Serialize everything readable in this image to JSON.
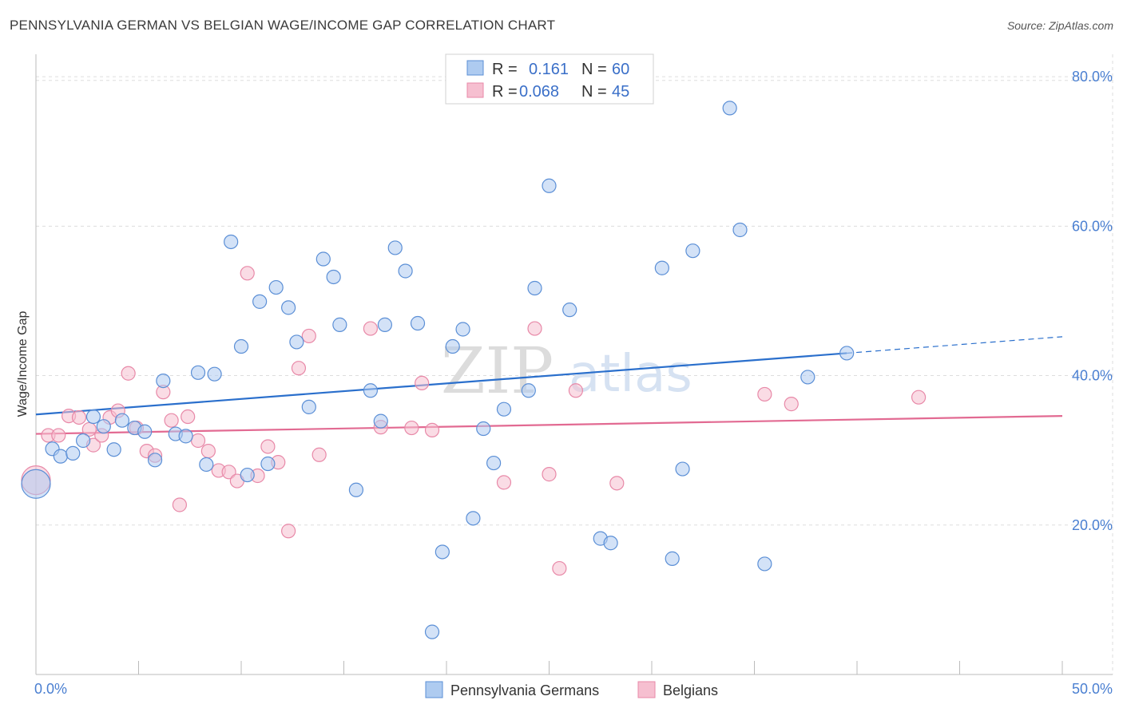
{
  "title": "PENNSYLVANIA GERMAN VS BELGIAN WAGE/INCOME GAP CORRELATION CHART",
  "source": "Source: ZipAtlas.com",
  "watermark": {
    "zip": "ZIP",
    "atlas": "atlas"
  },
  "colors": {
    "blue_fill": "#aecbf0",
    "blue_stroke": "#5b8fd6",
    "blue_line": "#2a6fcc",
    "pink_fill": "#f6bfd0",
    "pink_stroke": "#e889a8",
    "pink_line": "#e26a92",
    "grid": "#dddddd",
    "axis_label": "#4a7fd1"
  },
  "legend": {
    "rows": [
      {
        "r_label": "R =",
        "r_value": "0.161",
        "n_label": "N =",
        "n_value": "60"
      },
      {
        "r_label": "R =",
        "r_value": "0.068",
        "n_label": "N =",
        "n_value": "45"
      }
    ]
  },
  "bottom_legend": [
    "Pennsylvania Germans",
    "Belgians"
  ],
  "chart_data": {
    "type": "scatter",
    "title": "PENNSYLVANIA GERMAN VS BELGIAN WAGE/INCOME GAP CORRELATION CHART",
    "xlabel": "",
    "ylabel": "Wage/Income Gap",
    "xlim": [
      0,
      50
    ],
    "ylim": [
      0,
      83
    ],
    "x_tick_labels": [
      "0.0%",
      "50.0%"
    ],
    "y_ticks": [
      20,
      40,
      60,
      80
    ],
    "y_tick_labels": [
      "20.0%",
      "40.0%",
      "60.0%",
      "80.0%"
    ],
    "grid": true,
    "series": [
      {
        "name": "Pennsylvania Germans",
        "color": "#5b8fd6",
        "trend": {
          "x0": 0,
          "y0": 34.8,
          "x1": 39.5,
          "y1": 43.0,
          "x_ext": 50,
          "y_ext": 45.2
        },
        "points": [
          [
            0.0,
            25.5
          ],
          [
            0.8,
            30.2
          ],
          [
            1.2,
            29.2
          ],
          [
            1.8,
            29.6
          ],
          [
            2.3,
            31.3
          ],
          [
            2.8,
            34.5
          ],
          [
            3.3,
            33.2
          ],
          [
            3.8,
            30.1
          ],
          [
            4.2,
            34.0
          ],
          [
            4.8,
            33.0
          ],
          [
            5.3,
            32.5
          ],
          [
            5.8,
            28.7
          ],
          [
            6.2,
            39.3
          ],
          [
            6.8,
            32.2
          ],
          [
            7.3,
            31.9
          ],
          [
            7.9,
            40.4
          ],
          [
            8.3,
            28.1
          ],
          [
            8.7,
            40.2
          ],
          [
            9.5,
            57.9
          ],
          [
            10.0,
            43.9
          ],
          [
            10.3,
            26.7
          ],
          [
            10.9,
            49.9
          ],
          [
            11.3,
            28.2
          ],
          [
            11.7,
            51.8
          ],
          [
            12.3,
            49.1
          ],
          [
            12.7,
            44.5
          ],
          [
            13.3,
            35.8
          ],
          [
            14.0,
            55.6
          ],
          [
            14.5,
            53.2
          ],
          [
            14.8,
            46.8
          ],
          [
            15.6,
            24.7
          ],
          [
            16.3,
            38.0
          ],
          [
            16.8,
            33.9
          ],
          [
            17.0,
            46.8
          ],
          [
            17.5,
            57.1
          ],
          [
            18.0,
            54.0
          ],
          [
            18.6,
            47.0
          ],
          [
            19.8,
            16.4
          ],
          [
            19.3,
            5.7
          ],
          [
            20.3,
            43.9
          ],
          [
            20.8,
            46.2
          ],
          [
            21.3,
            20.9
          ],
          [
            21.8,
            32.9
          ],
          [
            22.3,
            28.3
          ],
          [
            22.8,
            35.5
          ],
          [
            24.0,
            38.0
          ],
          [
            24.3,
            51.7
          ],
          [
            25.0,
            65.4
          ],
          [
            26.0,
            48.8
          ],
          [
            27.5,
            18.2
          ],
          [
            28.0,
            17.6
          ],
          [
            30.5,
            54.4
          ],
          [
            31.0,
            15.5
          ],
          [
            31.5,
            27.5
          ],
          [
            32.0,
            56.7
          ],
          [
            33.8,
            75.8
          ],
          [
            34.3,
            59.5
          ],
          [
            35.5,
            14.8
          ],
          [
            37.6,
            39.8
          ],
          [
            39.5,
            43.0
          ]
        ]
      },
      {
        "name": "Belgians",
        "color": "#e889a8",
        "trend": {
          "x0": 0,
          "y0": 32.2,
          "x1": 50,
          "y1": 34.6
        },
        "points": [
          [
            0.0,
            26.0
          ],
          [
            0.6,
            32.0
          ],
          [
            1.1,
            32.0
          ],
          [
            1.6,
            34.6
          ],
          [
            2.1,
            34.4
          ],
          [
            2.6,
            32.8
          ],
          [
            2.8,
            30.7
          ],
          [
            3.2,
            32.0
          ],
          [
            3.6,
            34.4
          ],
          [
            4.0,
            35.3
          ],
          [
            4.5,
            40.3
          ],
          [
            4.9,
            33.0
          ],
          [
            5.4,
            29.9
          ],
          [
            5.8,
            29.3
          ],
          [
            6.2,
            37.8
          ],
          [
            6.6,
            34.0
          ],
          [
            7.0,
            22.7
          ],
          [
            7.4,
            34.5
          ],
          [
            7.9,
            31.3
          ],
          [
            8.4,
            29.9
          ],
          [
            8.9,
            27.3
          ],
          [
            9.4,
            27.1
          ],
          [
            9.8,
            25.9
          ],
          [
            10.3,
            53.7
          ],
          [
            10.8,
            26.6
          ],
          [
            11.3,
            30.5
          ],
          [
            11.8,
            28.4
          ],
          [
            12.3,
            19.2
          ],
          [
            12.8,
            41.0
          ],
          [
            13.3,
            45.3
          ],
          [
            13.8,
            29.4
          ],
          [
            16.3,
            46.3
          ],
          [
            16.8,
            33.1
          ],
          [
            18.3,
            33.0
          ],
          [
            18.8,
            39.0
          ],
          [
            19.3,
            32.7
          ],
          [
            22.8,
            25.7
          ],
          [
            24.3,
            46.3
          ],
          [
            25.0,
            26.8
          ],
          [
            25.5,
            14.2
          ],
          [
            26.3,
            38.0
          ],
          [
            28.3,
            25.6
          ],
          [
            35.5,
            37.5
          ],
          [
            36.8,
            36.2
          ],
          [
            43.0,
            37.1
          ]
        ]
      }
    ]
  }
}
